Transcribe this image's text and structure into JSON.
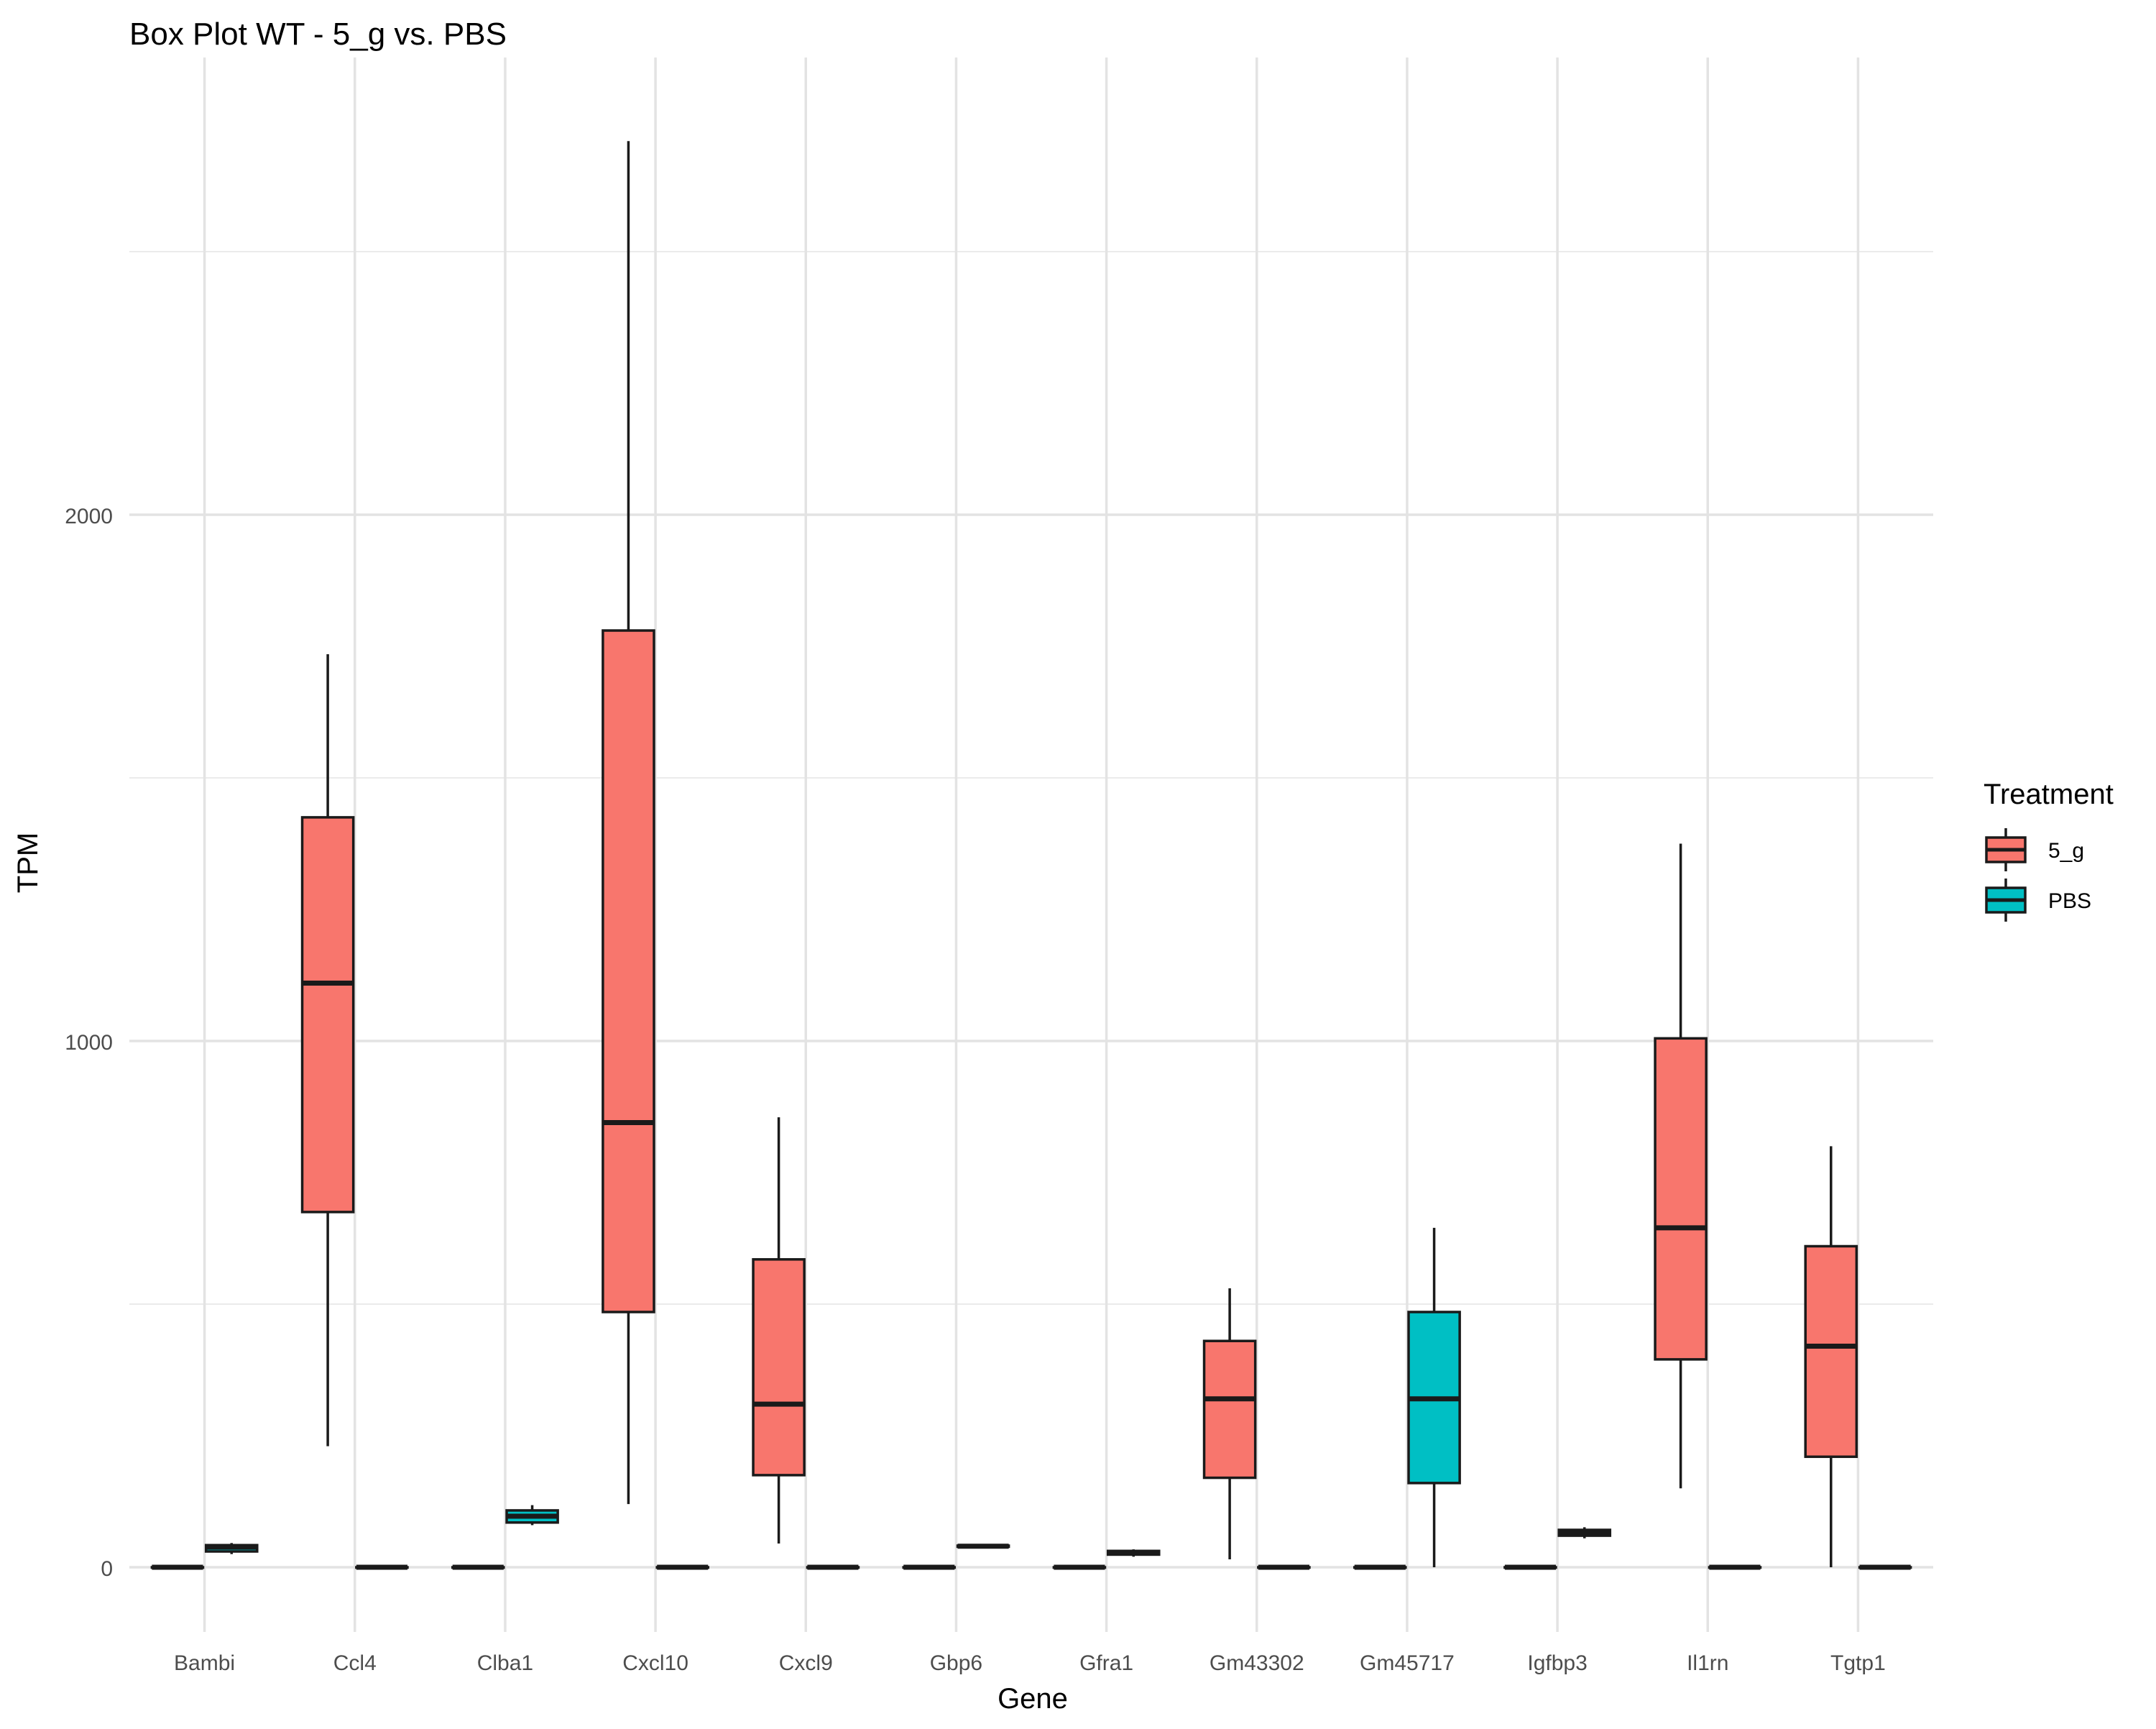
{
  "chart_data": {
    "type": "boxplot",
    "title": "Box Plot WT - 5_g vs. PBS",
    "xlabel": "Gene",
    "ylabel": "TPM",
    "ylim": [
      -170,
      2700
    ],
    "yticks": [
      0,
      1000,
      2000
    ],
    "ytick_labels": [
      "0",
      "1000",
      "2000"
    ],
    "grid": true,
    "legend": {
      "title": "Treatment",
      "position": "right",
      "entries": [
        {
          "label": "5_g",
          "color": "#F8766D"
        },
        {
          "label": "PBS",
          "color": "#00BFC4"
        }
      ]
    },
    "categories": [
      "Bambi",
      "Ccl4",
      "Clba1",
      "Cxcl10",
      "Cxcl9",
      "Gbp6",
      "Gfra1",
      "Gm43302",
      "Gm45717",
      "Igfbp3",
      "Il1rn",
      "Tgtp1"
    ],
    "series": [
      {
        "name": "5_g",
        "color": "#F8766D",
        "boxes": [
          {
            "min": 0,
            "q1": 0,
            "median": 0,
            "q3": 0,
            "max": 0
          },
          {
            "min": 230,
            "q1": 675,
            "median": 1110,
            "q3": 1425,
            "max": 1735
          },
          {
            "min": 0,
            "q1": 0,
            "median": 0,
            "q3": 0,
            "max": 0
          },
          {
            "min": 120,
            "q1": 485,
            "median": 845,
            "q3": 1780,
            "max": 2710
          },
          {
            "min": 45,
            "q1": 175,
            "median": 310,
            "q3": 585,
            "max": 855
          },
          {
            "min": 0,
            "q1": 0,
            "median": 0,
            "q3": 0,
            "max": 0
          },
          {
            "min": 0,
            "q1": 0,
            "median": 0,
            "q3": 0,
            "max": 0
          },
          {
            "min": 15,
            "q1": 170,
            "median": 320,
            "q3": 430,
            "max": 530
          },
          {
            "min": 0,
            "q1": 0,
            "median": 0,
            "q3": 0,
            "max": 0
          },
          {
            "min": 0,
            "q1": 0,
            "median": 0,
            "q3": 0,
            "max": 0
          },
          {
            "min": 150,
            "q1": 395,
            "median": 645,
            "q3": 1005,
            "max": 1375
          },
          {
            "min": 0,
            "q1": 210,
            "median": 420,
            "q3": 610,
            "max": 800
          }
        ]
      },
      {
        "name": "PBS",
        "color": "#00BFC4",
        "boxes": [
          {
            "min": 25,
            "q1": 30,
            "median": 38,
            "q3": 42,
            "max": 46
          },
          {
            "min": 0,
            "q1": 0,
            "median": 0,
            "q3": 0,
            "max": 0
          },
          {
            "min": 80,
            "q1": 85,
            "median": 97,
            "q3": 108,
            "max": 118
          },
          {
            "min": 0,
            "q1": 0,
            "median": 0,
            "q3": 0,
            "max": 0
          },
          {
            "min": 0,
            "q1": 0,
            "median": 0,
            "q3": 0,
            "max": 0
          },
          {
            "min": 38,
            "q1": 39,
            "median": 40,
            "q3": 41,
            "max": 42
          },
          {
            "min": 20,
            "q1": 24,
            "median": 28,
            "q3": 31,
            "max": 34
          },
          {
            "min": 0,
            "q1": 0,
            "median": 0,
            "q3": 0,
            "max": 0
          },
          {
            "min": 0,
            "q1": 160,
            "median": 320,
            "q3": 485,
            "max": 645
          },
          {
            "min": 55,
            "q1": 60,
            "median": 65,
            "q3": 71,
            "max": 76
          },
          {
            "min": 0,
            "q1": 0,
            "median": 0,
            "q3": 0,
            "max": 0
          },
          {
            "min": 0,
            "q1": 0,
            "median": 0,
            "q3": 0,
            "max": 0
          }
        ]
      }
    ]
  }
}
